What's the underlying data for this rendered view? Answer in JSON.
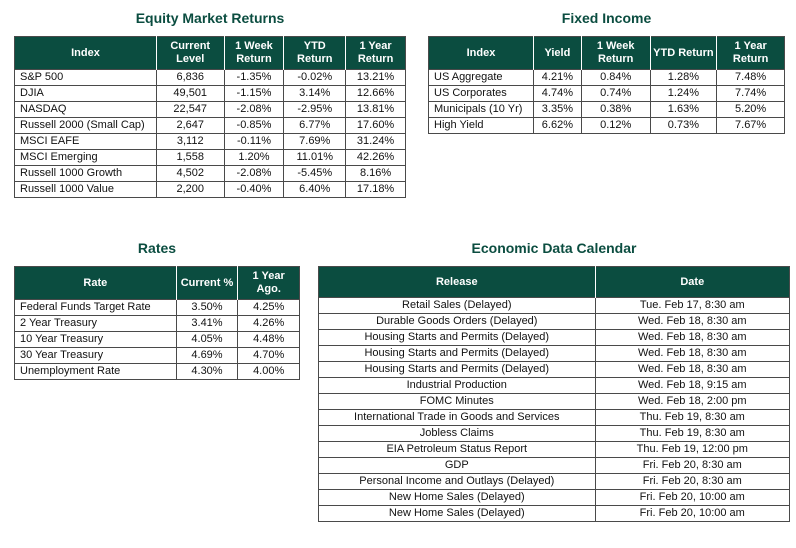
{
  "theme": {
    "header_bg": "#0b4d40",
    "header_text": "#ffffff",
    "title_color": "#0b4d40",
    "border_color": "#4a4a4a"
  },
  "tables": {
    "equity": {
      "title": "Equity Market Returns",
      "headers": [
        "Index",
        "Current Level",
        "1 Week Return",
        "YTD Return",
        "1 Year Return"
      ],
      "rows": [
        [
          "S&P 500",
          "6,836",
          "-1.35%",
          "-0.02%",
          "13.21%"
        ],
        [
          "DJIA",
          "49,501",
          "-1.15%",
          "3.14%",
          "12.66%"
        ],
        [
          "NASDAQ",
          "22,547",
          "-2.08%",
          "-2.95%",
          "13.81%"
        ],
        [
          "Russell 2000 (Small Cap)",
          "2,647",
          "-0.85%",
          "6.77%",
          "17.60%"
        ],
        [
          "MSCI EAFE",
          "3,112",
          "-0.11%",
          "7.69%",
          "31.24%"
        ],
        [
          "MSCI Emerging",
          "1,558",
          "1.20%",
          "11.01%",
          "42.26%"
        ],
        [
          "Russell 1000 Growth",
          "4,502",
          "-2.08%",
          "-5.45%",
          "8.16%"
        ],
        [
          "Russell 1000 Value",
          "2,200",
          "-0.40%",
          "6.40%",
          "17.18%"
        ]
      ]
    },
    "fixed_income": {
      "title": "Fixed Income",
      "headers": [
        "Index",
        "Yield",
        "1 Week Return",
        "YTD Return",
        "1 Year Return"
      ],
      "rows": [
        [
          "US Aggregate",
          "4.21%",
          "0.84%",
          "1.28%",
          "7.48%"
        ],
        [
          "US Corporates",
          "4.74%",
          "0.74%",
          "1.24%",
          "7.74%"
        ],
        [
          "Municipals (10 Yr)",
          "3.35%",
          "0.38%",
          "1.63%",
          "5.20%"
        ],
        [
          "High Yield",
          "6.62%",
          "0.12%",
          "0.73%",
          "7.67%"
        ]
      ]
    },
    "rates": {
      "title": "Rates",
      "headers": [
        "Rate",
        "Current %",
        "1 Year Ago."
      ],
      "rows": [
        [
          "Federal Funds Target Rate",
          "3.50%",
          "4.25%"
        ],
        [
          "2 Year Treasury",
          "3.41%",
          "4.26%"
        ],
        [
          "10 Year Treasury",
          "4.05%",
          "4.48%"
        ],
        [
          "30 Year Treasury",
          "4.69%",
          "4.70%"
        ],
        [
          "Unemployment Rate",
          "4.30%",
          "4.00%"
        ]
      ]
    },
    "calendar": {
      "title": "Economic Data Calendar",
      "headers": [
        "Release",
        "Date"
      ],
      "rows": [
        [
          "Retail Sales (Delayed)",
          "Tue. Feb 17, 8:30 am"
        ],
        [
          "Durable Goods Orders (Delayed)",
          "Wed. Feb 18, 8:30 am"
        ],
        [
          "Housing Starts and Permits (Delayed)",
          "Wed. Feb 18, 8:30 am"
        ],
        [
          "Housing Starts and Permits (Delayed)",
          "Wed. Feb 18, 8:30 am"
        ],
        [
          "Housing Starts and Permits (Delayed)",
          "Wed. Feb 18, 8:30 am"
        ],
        [
          "Industrial Production",
          "Wed. Feb 18, 9:15 am"
        ],
        [
          "FOMC Minutes",
          "Wed. Feb 18, 2:00 pm"
        ],
        [
          "International Trade in Goods and Services",
          "Thu. Feb 19, 8:30 am"
        ],
        [
          "Jobless Claims",
          "Thu. Feb 19, 8:30 am"
        ],
        [
          "EIA Petroleum Status Report",
          "Thu. Feb 19, 12:00 pm"
        ],
        [
          "GDP",
          "Fri. Feb 20, 8:30 am"
        ],
        [
          "Personal Income and Outlays (Delayed)",
          "Fri. Feb 20, 8:30 am"
        ],
        [
          "New Home Sales (Delayed)",
          "Fri. Feb 20, 10:00 am"
        ],
        [
          "New Home Sales (Delayed)",
          "Fri. Feb 20, 10:00 am"
        ]
      ]
    }
  }
}
